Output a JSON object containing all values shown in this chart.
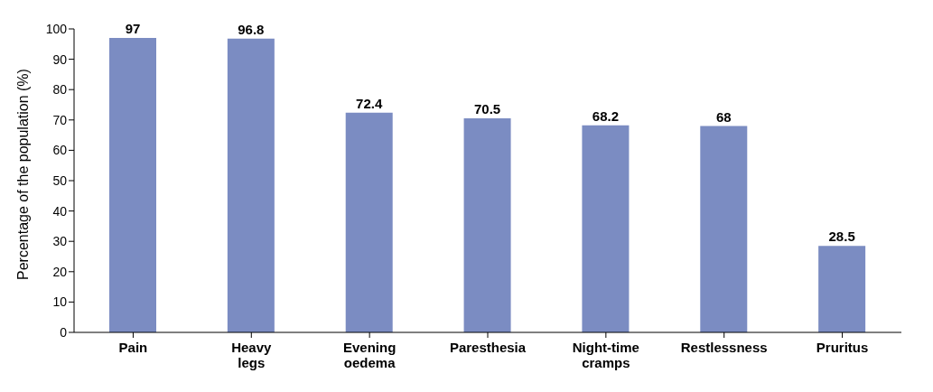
{
  "chart_data": {
    "type": "bar",
    "ylabel": "Percentage of the population (%)",
    "categories": [
      "Pain",
      "Heavy legs",
      "Evening oedema",
      "Paresthesia",
      "Night-time cramps",
      "Restlessness",
      "Pruritus"
    ],
    "values": [
      97,
      96.8,
      72.4,
      70.5,
      68.2,
      68,
      28.5
    ],
    "color": "#7b8cc2",
    "ylim": [
      0,
      100
    ],
    "yticks": [
      0,
      10,
      20,
      30,
      40,
      50,
      60,
      70,
      80,
      90,
      100
    ],
    "data_labels": true,
    "grid": false,
    "legend": false
  }
}
